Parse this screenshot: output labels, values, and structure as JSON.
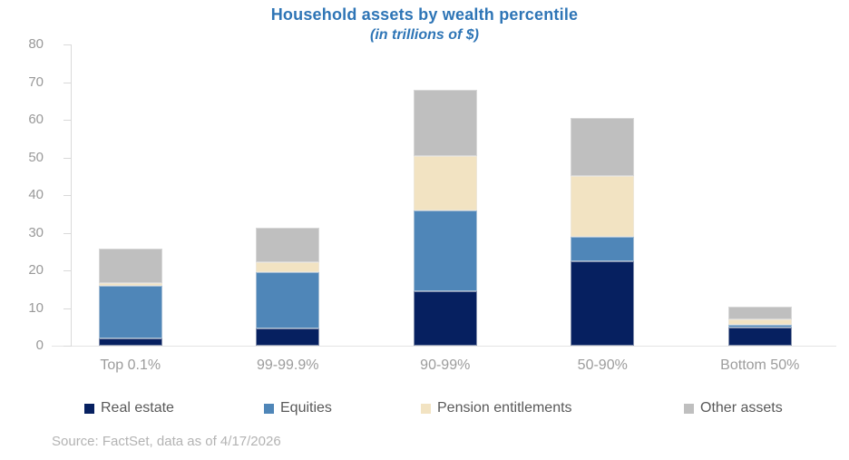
{
  "title": "Household assets by wealth percentile",
  "subtitle": "(in trillions of $)",
  "source": "Source: FactSet, data as of 4/17/2026",
  "colors": {
    "title_blue": "#2e75b6",
    "axis_gray": "#d9d9d9",
    "real_estate": "#062060",
    "equities": "#4f86b8",
    "pension_entitlements": "#f2e3c2",
    "other_assets": "#bfbfbf"
  },
  "chart_data": {
    "type": "bar",
    "stacked": true,
    "title": "Household assets by wealth percentile",
    "subtitle": "(in trillions of $)",
    "xlabel": "",
    "ylabel": "",
    "categories": [
      "Top 0.1%",
      "99-99.9%",
      "90-99%",
      "50-90%",
      "Bottom 50%"
    ],
    "series": [
      {
        "name": "Real estate",
        "color": "#062060",
        "values": [
          2.0,
          4.5,
          14.5,
          22.4,
          4.8
        ]
      },
      {
        "name": "Equities",
        "color": "#4f86b8",
        "values": [
          14.0,
          14.9,
          21.5,
          6.6,
          0.8
        ]
      },
      {
        "name": "Pension entitlements",
        "color": "#f2e3c2",
        "values": [
          0.7,
          2.8,
          14.4,
          16.0,
          1.4
        ]
      },
      {
        "name": "Other assets",
        "color": "#bfbfbf",
        "values": [
          9.0,
          9.1,
          17.6,
          15.4,
          3.4
        ]
      }
    ],
    "totals": [
      25.7,
      31.3,
      68.0,
      60.4,
      10.4
    ],
    "ylim": [
      0,
      80
    ],
    "yticks": [
      "0",
      "10",
      "20",
      "30",
      "40",
      "50",
      "60",
      "70",
      "80"
    ],
    "grid": false,
    "legend_position": "bottom"
  }
}
